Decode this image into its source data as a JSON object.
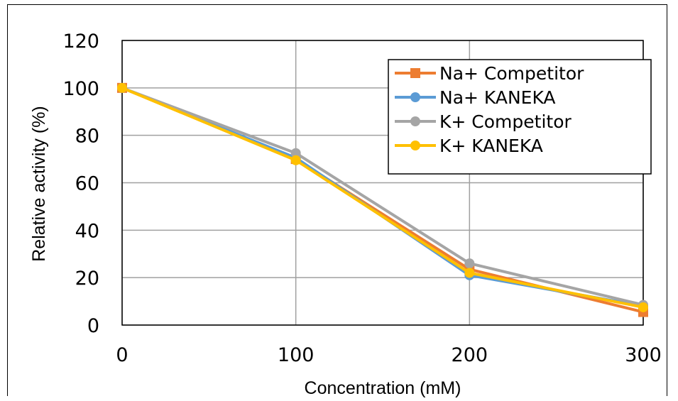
{
  "chart_data": {
    "type": "line",
    "title": "",
    "xlabel": "Concentration (mM)",
    "ylabel": "Relative activity (%)",
    "x": [
      0,
      100,
      200,
      300
    ],
    "xlim": [
      0,
      300
    ],
    "ylim": [
      0,
      120
    ],
    "xticks": [
      0,
      100,
      200,
      300
    ],
    "yticks": [
      0,
      20,
      40,
      60,
      80,
      100,
      120
    ],
    "grid": true,
    "legend_position": "top-right",
    "series": [
      {
        "name": "Na+ Competitor",
        "values": [
          100,
          70,
          23.5,
          5.5
        ],
        "color": "#ed7d31",
        "marker": "square"
      },
      {
        "name": "Na+ KANEKA",
        "values": [
          100,
          70.5,
          21,
          8
        ],
        "color": "#5b9bd5",
        "marker": "circle"
      },
      {
        "name": "K+ Competitor",
        "values": [
          100,
          72.5,
          26,
          8.5
        ],
        "color": "#a5a5a5",
        "marker": "circle"
      },
      {
        "name": "K+ KANEKA",
        "values": [
          100,
          69.5,
          22,
          7.5
        ],
        "color": "#ffc000",
        "marker": "circle"
      }
    ]
  }
}
